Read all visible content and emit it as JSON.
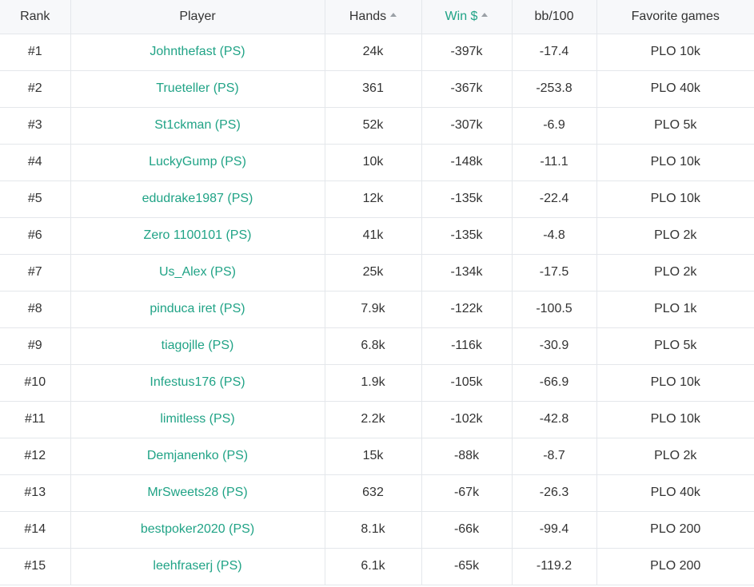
{
  "accent_color": "#20a386",
  "header": {
    "rank": "Rank",
    "player": "Player",
    "hands": "Hands",
    "win": "Win $",
    "bb100": "bb/100",
    "favorite": "Favorite games"
  },
  "rows": [
    {
      "rank": "#1",
      "player": "Johnthefast (PS)",
      "hands": "24k",
      "win": "-397k",
      "bb100": "-17.4",
      "favorite": "PLO 10k"
    },
    {
      "rank": "#2",
      "player": "Trueteller (PS)",
      "hands": "361",
      "win": "-367k",
      "bb100": "-253.8",
      "favorite": "PLO 40k"
    },
    {
      "rank": "#3",
      "player": "St1ckman (PS)",
      "hands": "52k",
      "win": "-307k",
      "bb100": "-6.9",
      "favorite": "PLO 5k"
    },
    {
      "rank": "#4",
      "player": "LuckyGump (PS)",
      "hands": "10k",
      "win": "-148k",
      "bb100": "-11.1",
      "favorite": "PLO 10k"
    },
    {
      "rank": "#5",
      "player": "edudrake1987 (PS)",
      "hands": "12k",
      "win": "-135k",
      "bb100": "-22.4",
      "favorite": "PLO 10k"
    },
    {
      "rank": "#6",
      "player": "Zero 1100101 (PS)",
      "hands": "41k",
      "win": "-135k",
      "bb100": "-4.8",
      "favorite": "PLO 2k"
    },
    {
      "rank": "#7",
      "player": "Us_Alex (PS)",
      "hands": "25k",
      "win": "-134k",
      "bb100": "-17.5",
      "favorite": "PLO 2k"
    },
    {
      "rank": "#8",
      "player": "pinduca iret (PS)",
      "hands": "7.9k",
      "win": "-122k",
      "bb100": "-100.5",
      "favorite": "PLO 1k"
    },
    {
      "rank": "#9",
      "player": "tiagojlle (PS)",
      "hands": "6.8k",
      "win": "-116k",
      "bb100": "-30.9",
      "favorite": "PLO 5k"
    },
    {
      "rank": "#10",
      "player": "Infestus176 (PS)",
      "hands": "1.9k",
      "win": "-105k",
      "bb100": "-66.9",
      "favorite": "PLO 10k"
    },
    {
      "rank": "#11",
      "player": "limitless (PS)",
      "hands": "2.2k",
      "win": "-102k",
      "bb100": "-42.8",
      "favorite": "PLO 10k"
    },
    {
      "rank": "#12",
      "player": "Demjanenko (PS)",
      "hands": "15k",
      "win": "-88k",
      "bb100": "-8.7",
      "favorite": "PLO 2k"
    },
    {
      "rank": "#13",
      "player": "MrSweets28 (PS)",
      "hands": "632",
      "win": "-67k",
      "bb100": "-26.3",
      "favorite": "PLO 40k"
    },
    {
      "rank": "#14",
      "player": "bestpoker2020 (PS)",
      "hands": "8.1k",
      "win": "-66k",
      "bb100": "-99.4",
      "favorite": "PLO 200"
    },
    {
      "rank": "#15",
      "player": "leehfraserj (PS)",
      "hands": "6.1k",
      "win": "-65k",
      "bb100": "-119.2",
      "favorite": "PLO 200"
    }
  ]
}
